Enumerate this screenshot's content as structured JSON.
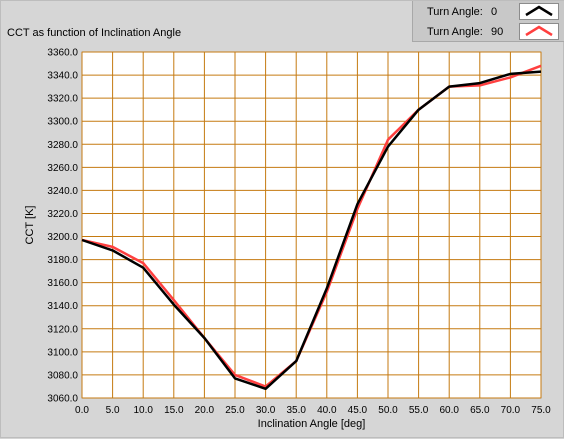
{
  "window": {
    "title": "CCT as function of Inclination Angle"
  },
  "legend": {
    "items": [
      {
        "label": "Turn Angle:",
        "value": "0",
        "color": "#000000"
      },
      {
        "label": "Turn Angle:",
        "value": "90",
        "color": "#ff4040"
      }
    ]
  },
  "colors": {
    "panel_background": "#d6d6d6",
    "plot_background": "#ffffff",
    "grid": "#c57a10",
    "series_black": "#000000",
    "series_red": "#ff4040"
  },
  "chart_data": {
    "type": "line",
    "title": "CCT as function of Inclination Angle",
    "xlabel": "Inclination Angle [deg]",
    "ylabel": "CCT [K]",
    "xlim": [
      0,
      75
    ],
    "ylim": [
      3060,
      3360
    ],
    "grid": true,
    "legend_position": "top-right",
    "x_ticks": [
      "0.0",
      "5.0",
      "10.0",
      "15.0",
      "20.0",
      "25.0",
      "30.0",
      "35.0",
      "40.0",
      "45.0",
      "50.0",
      "55.0",
      "60.0",
      "65.0",
      "70.0",
      "75.0"
    ],
    "y_ticks": [
      "3060.0",
      "3080.0",
      "3100.0",
      "3120.0",
      "3140.0",
      "3160.0",
      "3180.0",
      "3200.0",
      "3220.0",
      "3240.0",
      "3260.0",
      "3280.0",
      "3300.0",
      "3320.0",
      "3340.0",
      "3360.0"
    ],
    "x": [
      0,
      5,
      10,
      15,
      20,
      25,
      30,
      35,
      40,
      45,
      50,
      55,
      60,
      65,
      70,
      75
    ],
    "series": [
      {
        "name": "Turn Angle: 90",
        "color": "#ff4040",
        "values": [
          3197,
          3191,
          3177,
          3145,
          3112,
          3080,
          3070,
          3092,
          3152,
          3224,
          3284,
          3310,
          3330,
          3331,
          3338,
          3348
        ]
      },
      {
        "name": "Turn Angle: 0",
        "color": "#000000",
        "values": [
          3197,
          3188,
          3173,
          3141,
          3112,
          3077,
          3068,
          3092,
          3155,
          3228,
          3278,
          3310,
          3330,
          3333,
          3341,
          3343
        ]
      }
    ]
  }
}
